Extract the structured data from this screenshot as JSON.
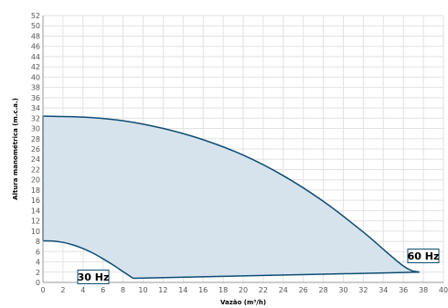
{
  "chart_data": {
    "type": "area",
    "xlabel": "Vazão (m³/h)",
    "ylabel": "Altura manométrica (m.c.a.)",
    "xlim": [
      0,
      40
    ],
    "ylim": [
      0,
      52
    ],
    "x_ticks": [
      0,
      2,
      4,
      6,
      8,
      10,
      12,
      14,
      16,
      18,
      20,
      22,
      24,
      26,
      28,
      30,
      32,
      34,
      36,
      38,
      40
    ],
    "y_ticks": [
      0,
      2,
      4,
      6,
      8,
      10,
      12,
      14,
      16,
      18,
      20,
      22,
      24,
      26,
      28,
      30,
      32,
      34,
      36,
      38,
      40,
      42,
      44,
      46,
      48,
      50,
      52
    ],
    "grid": true,
    "series": [
      {
        "name": "60 Hz",
        "x": [
          0,
          4,
          8,
          12,
          16,
          20,
          24,
          28,
          32,
          36,
          37.6
        ],
        "y": [
          32.4,
          32.2,
          31.5,
          30.0,
          27.8,
          24.8,
          20.8,
          15.8,
          9.8,
          3.2,
          2.0
        ]
      },
      {
        "name": "30 Hz",
        "x": [
          0,
          1,
          2,
          3,
          4,
          5,
          6,
          7,
          8,
          9
        ],
        "y": [
          8.1,
          8.05,
          7.8,
          7.3,
          6.6,
          5.7,
          4.6,
          3.4,
          2.1,
          0.8
        ]
      },
      {
        "name": "min-boundary",
        "x": [
          9,
          37.6
        ],
        "y": [
          0.8,
          2.0
        ]
      }
    ],
    "labels": {
      "hz60": "60 Hz",
      "hz30": "30 Hz"
    },
    "colors": {
      "fill": "#d6e3ec",
      "line": "#0e4c73",
      "grid": "#e2e2e2",
      "axis": "#9a9a9a"
    }
  }
}
